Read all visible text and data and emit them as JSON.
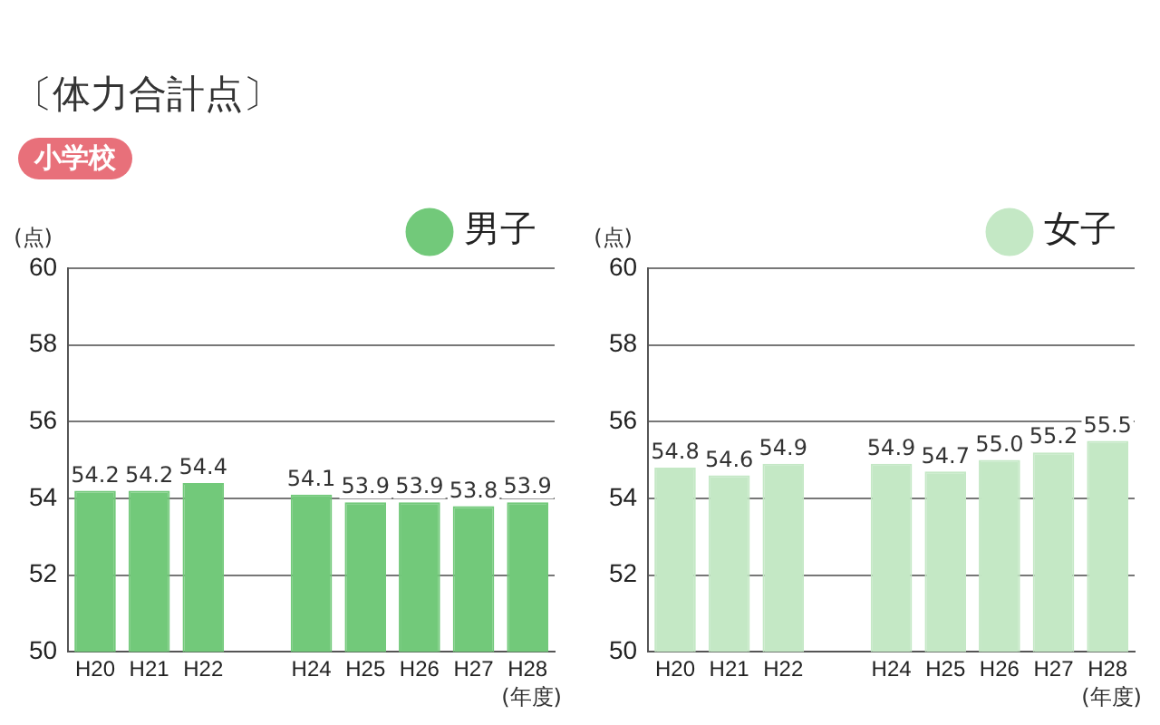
{
  "chart_data": [
    {
      "type": "bar",
      "title": "〔体力合計点〕",
      "subtitle": "小学校",
      "ylabel": "(点)",
      "xlabel": "(年度)",
      "categories": [
        "H20",
        "H21",
        "H22",
        null,
        "H24",
        "H25",
        "H26",
        "H27",
        "H28"
      ],
      "series": [
        {
          "name": "男子",
          "color": "#72c97a",
          "values": [
            54.2,
            54.2,
            54.4,
            null,
            54.1,
            53.9,
            53.9,
            53.8,
            53.9
          ]
        }
      ],
      "ylim": [
        50,
        60
      ],
      "yticks": [
        50,
        52,
        54,
        56,
        58,
        60
      ],
      "grid": "y",
      "legend": "top right",
      "data_labels": true
    },
    {
      "type": "bar",
      "ylabel": "(点)",
      "xlabel": "(年度)",
      "categories": [
        "H20",
        "H21",
        "H22",
        null,
        "H24",
        "H25",
        "H26",
        "H27",
        "H28"
      ],
      "series": [
        {
          "name": "女子",
          "color": "#c4e8c5",
          "values": [
            54.8,
            54.6,
            54.9,
            null,
            54.9,
            54.7,
            55.0,
            55.2,
            55.5
          ],
          "value_labels": [
            "54.8",
            "54.6",
            "54.9",
            null,
            "54.9",
            "54.7",
            "55.0",
            "55.2",
            "55.5"
          ]
        }
      ],
      "ylim": [
        50,
        60
      ],
      "yticks": [
        50,
        52,
        54,
        56,
        58,
        60
      ],
      "grid": "y",
      "legend": "top right"
    }
  ]
}
